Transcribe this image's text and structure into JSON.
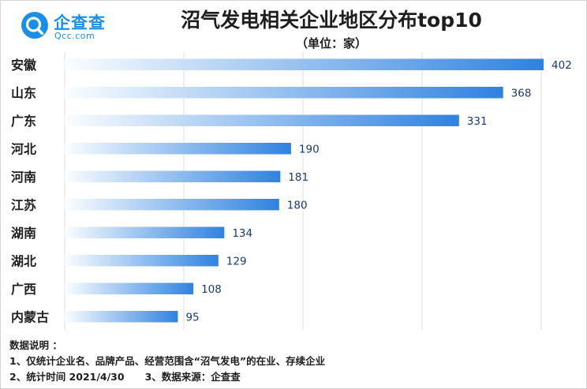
{
  "brand": {
    "name_cn": "企查查",
    "name_en": "Qcc.com"
  },
  "title": "沼气发电相关企业地区分布top10",
  "subtitle": "（单位：家）",
  "chart_data": {
    "type": "bar",
    "orientation": "horizontal",
    "title": "沼气发电相关企业地区分布top10",
    "unit": "（单位：家）",
    "categories": [
      "安徽",
      "山东",
      "广东",
      "河北",
      "河南",
      "江苏",
      "湖南",
      "湖北",
      "广西",
      "内蒙古"
    ],
    "values": [
      402,
      368,
      331,
      190,
      181,
      180,
      134,
      129,
      108,
      95
    ],
    "xlim": [
      0,
      400
    ],
    "grid": true,
    "colors": {
      "bar_start": "#fbfdff",
      "bar_end": "#2f82e0",
      "label": "#1b3a73",
      "grid": "#dedede"
    }
  },
  "notes": {
    "heading": "数据说明 ：",
    "line1": "1、仅统计企业名、品牌产品、经营范围含“沼气发电”的在业、存续企业",
    "line2_a": "2、统计时间  2021/4/30",
    "line2_b": "3、数据来源：企查查"
  }
}
